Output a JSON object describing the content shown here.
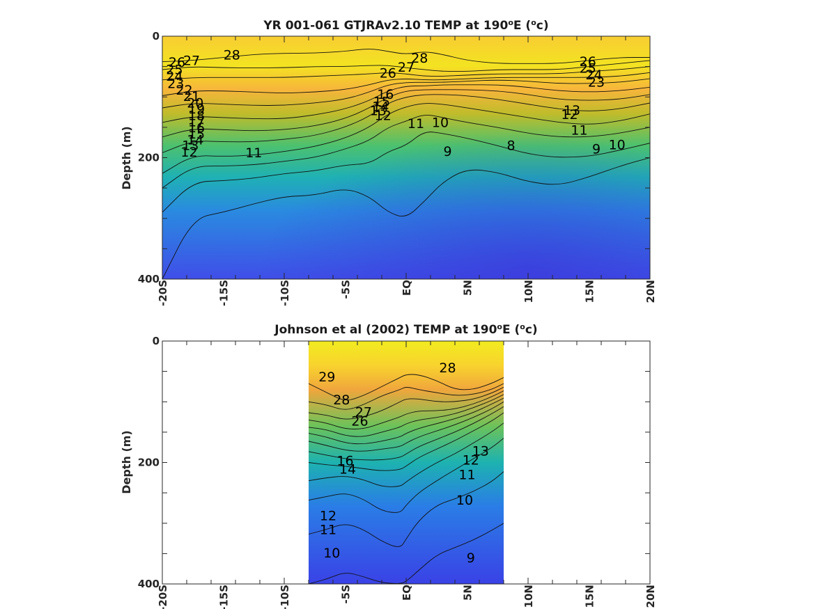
{
  "chart_data": [
    {
      "type": "heatmap",
      "title": "YR 001-061 GTJRAv2.10 TEMP at 190ºE (ºc)",
      "title_parts": {
        "pre": "YR 001-061 GTJRAv2.10 TEMP at 190",
        "deg1": "o",
        "mid": "E (",
        "deg2": "o",
        "post": "c)"
      },
      "ylabel": "Depth (m)",
      "xlim": [
        -20,
        20
      ],
      "ylim": [
        0,
        400
      ],
      "yaxis_reversed": true,
      "x_ticks": [
        "-20S",
        "-15S",
        "-10S",
        "-5S",
        "EQ",
        "5N",
        "10N",
        "15N",
        "20N"
      ],
      "y_ticks": [
        "0",
        "200",
        "400"
      ],
      "data_extent_x": [
        -20,
        20
      ],
      "colormap": "parula",
      "contour_labels": [
        {
          "text": "28",
          "x": -14.3,
          "y": 32
        },
        {
          "text": "28",
          "x": 1.1,
          "y": 37
        },
        {
          "text": "27",
          "x": -17.6,
          "y": 41
        },
        {
          "text": "27",
          "x": 0.0,
          "y": 52
        },
        {
          "text": "26",
          "x": -18.8,
          "y": 44
        },
        {
          "text": "26",
          "x": -1.5,
          "y": 62
        },
        {
          "text": "26",
          "x": 14.9,
          "y": 43
        },
        {
          "text": "25",
          "x": -19.0,
          "y": 56
        },
        {
          "text": "25",
          "x": 14.9,
          "y": 54
        },
        {
          "text": "24",
          "x": -19.0,
          "y": 67
        },
        {
          "text": "24",
          "x": 15.4,
          "y": 65
        },
        {
          "text": "23",
          "x": -18.9,
          "y": 79
        },
        {
          "text": "23",
          "x": 15.6,
          "y": 77
        },
        {
          "text": "22",
          "x": -18.2,
          "y": 90
        },
        {
          "text": "21",
          "x": -17.6,
          "y": 100
        },
        {
          "text": "20",
          "x": -17.3,
          "y": 111
        },
        {
          "text": "19",
          "x": -17.2,
          "y": 121
        },
        {
          "text": "18",
          "x": -17.2,
          "y": 132
        },
        {
          "text": "17",
          "x": -17.2,
          "y": 142
        },
        {
          "text": "16",
          "x": -17.2,
          "y": 152
        },
        {
          "text": "15",
          "x": -17.2,
          "y": 162
        },
        {
          "text": "14",
          "x": -17.3,
          "y": 172
        },
        {
          "text": "13",
          "x": -17.7,
          "y": 181
        },
        {
          "text": "12",
          "x": -17.8,
          "y": 192
        },
        {
          "text": "11",
          "x": -12.5,
          "y": 193
        },
        {
          "text": "16",
          "x": -1.7,
          "y": 97
        },
        {
          "text": "15",
          "x": -2.0,
          "y": 109
        },
        {
          "text": "14",
          "x": -2.1,
          "y": 117
        },
        {
          "text": "13",
          "x": -2.3,
          "y": 124
        },
        {
          "text": "12",
          "x": -1.9,
          "y": 132
        },
        {
          "text": "11",
          "x": 0.8,
          "y": 145
        },
        {
          "text": "10",
          "x": 2.8,
          "y": 143
        },
        {
          "text": "9",
          "x": 3.4,
          "y": 191
        },
        {
          "text": "8",
          "x": 8.6,
          "y": 181
        },
        {
          "text": "9",
          "x": 15.6,
          "y": 187
        },
        {
          "text": "10",
          "x": 17.3,
          "y": 180
        },
        {
          "text": "11",
          "x": 14.2,
          "y": 156
        },
        {
          "text": "13",
          "x": 13.6,
          "y": 123
        },
        {
          "text": "12",
          "x": 13.4,
          "y": 130
        }
      ],
      "iso_depth_profiles": {
        "x": [
          -20,
          -17.5,
          -15,
          -12.5,
          -10,
          -7.5,
          -5,
          -3,
          -1.5,
          0,
          1.5,
          3,
          5,
          7.5,
          10,
          12.5,
          15,
          17.5,
          20
        ],
        "levels": [
          {
            "t": 28,
            "depth": [
              42,
              40,
              35,
              30,
              28,
              28,
              25,
              20,
              25,
              30,
              25,
              30,
              40,
              45,
              45,
              45,
              40,
              35,
              35
            ]
          },
          {
            "t": 27,
            "depth": [
              55,
              50,
              52,
              52,
              52,
              50,
              50,
              48,
              48,
              52,
              55,
              58,
              58,
              55,
              55,
              55,
              50,
              45,
              40
            ]
          },
          {
            "t": 25,
            "depth": [
              72,
              68,
              68,
              68,
              68,
              66,
              64,
              62,
              60,
              62,
              66,
              66,
              64,
              62,
              62,
              62,
              58,
              55,
              50
            ]
          },
          {
            "t": 22,
            "depth": [
              98,
              90,
              90,
              92,
              94,
              92,
              88,
              80,
              72,
              70,
              72,
              72,
              70,
              68,
              68,
              68,
              68,
              66,
              60
            ]
          },
          {
            "t": 20,
            "depth": [
              118,
              110,
              112,
              114,
              114,
              110,
              104,
              92,
              80,
              76,
              76,
              76,
              74,
              72,
              74,
              78,
              78,
              76,
              70
            ]
          },
          {
            "t": 18,
            "depth": [
              142,
              132,
              134,
              136,
              136,
              130,
              120,
              106,
              90,
              82,
              82,
              80,
              80,
              80,
              84,
              90,
              92,
              90,
              84
            ]
          },
          {
            "t": 16,
            "depth": [
              166,
              152,
              154,
              156,
              154,
              148,
              136,
              118,
              100,
              90,
              88,
              88,
              88,
              90,
              96,
              104,
              106,
              104,
              96
            ]
          },
          {
            "t": 14,
            "depth": [
              192,
              172,
              174,
              174,
              170,
              164,
              150,
              132,
              110,
              100,
              96,
              96,
              98,
              104,
              112,
              120,
              124,
              120,
              110
            ]
          },
          {
            "t": 12,
            "depth": [
              226,
              196,
              198,
              196,
              190,
              182,
              168,
              150,
              128,
              116,
              110,
              112,
              118,
              126,
              134,
              142,
              146,
              140,
              128
            ]
          },
          {
            "t": 11,
            "depth": [
              250,
              214,
              214,
              212,
              206,
              200,
              186,
              172,
              150,
              140,
              128,
              134,
              142,
              150,
              160,
              166,
              166,
              160,
              150
            ]
          },
          {
            "t": 10,
            "depth": [
              290,
              240,
              238,
              234,
              226,
              222,
              212,
              210,
              190,
              180,
              156,
              160,
              168,
              180,
              194,
              200,
              198,
              188,
              176
            ]
          },
          {
            "t": 9,
            "depth": [
              400,
              300,
              290,
              276,
              264,
              262,
              250,
              264,
              290,
              300,
              272,
              240,
              218,
              224,
              240,
              246,
              232,
              214,
              200
            ]
          }
        ]
      }
    },
    {
      "type": "heatmap",
      "title": "Johnson et al (2002) TEMP at 190ºE (ºc)",
      "title_parts": {
        "pre": "Johnson et al (2002) TEMP at 190",
        "deg1": "o",
        "mid": "E (",
        "deg2": "o",
        "post": "c)"
      },
      "ylabel": "Depth (m)",
      "xlim": [
        -20,
        20
      ],
      "ylim": [
        0,
        400
      ],
      "yaxis_reversed": true,
      "x_ticks": [
        "-20S",
        "-15S",
        "-10S",
        "-5S",
        "EQ",
        "5N",
        "10N",
        "15N",
        "20N"
      ],
      "y_ticks": [
        "0",
        "200",
        "400"
      ],
      "data_extent_x": [
        -8,
        8
      ],
      "colormap": "parula",
      "contour_labels": [
        {
          "text": "29",
          "x": -6.5,
          "y": 60
        },
        {
          "text": "28",
          "x": -5.3,
          "y": 98
        },
        {
          "text": "28",
          "x": 3.4,
          "y": 45
        },
        {
          "text": "27",
          "x": -3.5,
          "y": 118
        },
        {
          "text": "26",
          "x": -3.8,
          "y": 133
        },
        {
          "text": "16",
          "x": -5.0,
          "y": 198
        },
        {
          "text": "14",
          "x": -4.8,
          "y": 212
        },
        {
          "text": "13",
          "x": 6.1,
          "y": 182
        },
        {
          "text": "12",
          "x": 5.3,
          "y": 197
        },
        {
          "text": "11",
          "x": 5.0,
          "y": 221
        },
        {
          "text": "12",
          "x": -6.4,
          "y": 289
        },
        {
          "text": "11",
          "x": -6.4,
          "y": 312
        },
        {
          "text": "10",
          "x": -6.1,
          "y": 350
        },
        {
          "text": "10",
          "x": 4.8,
          "y": 263
        },
        {
          "text": "9",
          "x": 5.3,
          "y": 358
        }
      ],
      "iso_depth_profiles": {
        "x": [
          -8,
          -6.5,
          -5,
          -3.5,
          -2,
          -0.5,
          0,
          1,
          2.5,
          4,
          5.5,
          7,
          8
        ],
        "levels": [
          {
            "t": 28,
            "depth": [
              70,
              85,
              100,
              90,
              75,
              60,
              55,
              55,
              65,
              80,
              80,
              70,
              60
            ]
          },
          {
            "t": 27,
            "depth": [
              100,
              105,
              115,
              105,
              90,
              80,
              75,
              80,
              85,
              90,
              88,
              80,
              70
            ]
          },
          {
            "t": 25,
            "depth": [
              118,
              122,
              130,
              125,
              115,
              100,
              95,
              95,
              100,
              100,
              96,
              86,
              76
            ]
          },
          {
            "t": 22,
            "depth": [
              130,
              135,
              145,
              145,
              135,
              125,
              120,
              115,
              115,
              112,
              104,
              92,
              82
            ]
          },
          {
            "t": 20,
            "depth": [
              142,
              146,
              156,
              158,
              150,
              142,
              136,
              130,
              126,
              120,
              110,
              98,
              88
            ]
          },
          {
            "t": 18,
            "depth": [
              152,
              158,
              168,
              170,
              165,
              158,
              152,
              144,
              136,
              128,
              118,
              104,
              94
            ]
          },
          {
            "t": 16,
            "depth": [
              165,
              172,
              180,
              182,
              178,
              174,
              168,
              158,
              148,
              138,
              126,
              112,
              100
            ]
          },
          {
            "t": 14,
            "depth": [
              182,
              188,
              194,
              196,
              196,
              192,
              186,
              174,
              162,
              150,
              136,
              120,
              108
            ]
          },
          {
            "t": 13,
            "depth": [
              200,
              204,
              206,
              210,
              214,
              212,
              206,
              192,
              178,
              164,
              148,
              132,
              118
            ]
          },
          {
            "t": 12,
            "depth": [
              230,
              225,
              222,
              228,
              240,
              240,
              232,
              218,
              200,
              186,
              168,
              150,
              135
            ]
          },
          {
            "t": 11,
            "depth": [
              262,
              256,
              250,
              260,
              280,
              284,
              270,
              250,
              230,
              212,
              194,
              176,
              160
            ]
          },
          {
            "t": 10,
            "depth": [
              318,
              310,
              300,
              310,
              330,
              342,
              326,
              296,
              270,
              260,
              248,
              232,
              215
            ]
          },
          {
            "t": 9,
            "depth": [
              400,
              392,
              380,
              388,
              398,
              400,
              396,
              378,
              352,
              340,
              328,
              312,
              300
            ]
          }
        ]
      }
    }
  ]
}
